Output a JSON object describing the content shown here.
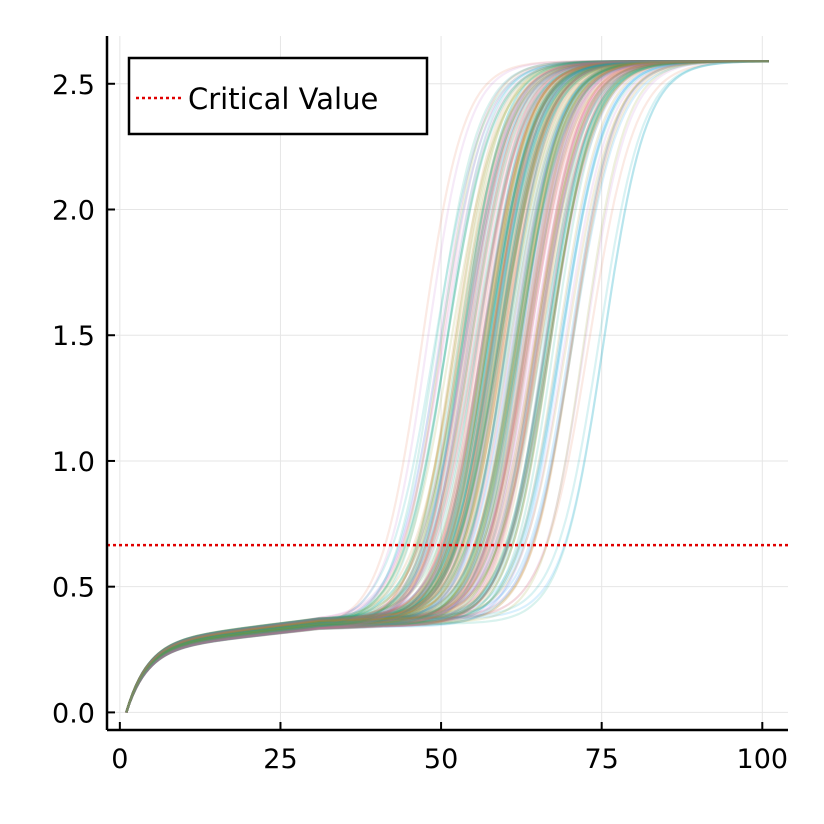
{
  "chart_data": {
    "type": "line",
    "title": "",
    "xlabel": "",
    "ylabel": "",
    "xlim": [
      -2,
      104
    ],
    "ylim": [
      -0.07,
      2.69
    ],
    "xticks": [
      0,
      25,
      50,
      75,
      100
    ],
    "yticks": [
      0.0,
      0.5,
      1.0,
      1.5,
      2.0,
      2.5
    ],
    "xtick_labels": [
      "0",
      "25",
      "50",
      "75",
      "100"
    ],
    "ytick_labels": [
      "0.0",
      "0.5",
      "1.0",
      "1.5",
      "2.0",
      "2.5"
    ],
    "grid": true,
    "legend_position": "top-left",
    "legend_entries": [
      {
        "label": "Critical Value",
        "color": "#e00000",
        "style": "dotted"
      }
    ],
    "critical_value": 0.665,
    "ensemble": {
      "count": 220,
      "x_range": [
        1,
        101
      ],
      "start_value": 0.0,
      "plateau_value": 0.33,
      "final_value": 2.59,
      "transition_midpoint_range": [
        47,
        83
      ],
      "typical_transition_midpoint": 60,
      "opacity": 0.15,
      "palette": [
        "#009AFA",
        "#E36F47",
        "#3EA44E",
        "#C371D2",
        "#AC8E18",
        "#00A9AD",
        "#ED5E93",
        "#C68225",
        "#00A98D",
        "#8E971E"
      ]
    }
  }
}
